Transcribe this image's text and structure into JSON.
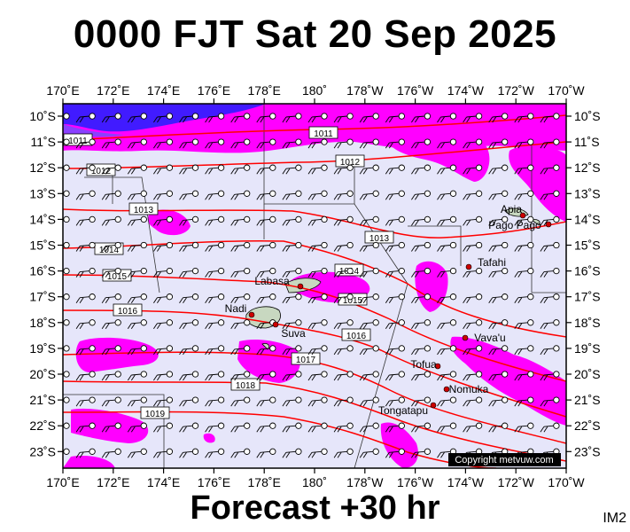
{
  "title": "0000 FJT Sat 20 Sep 2025",
  "footer": "Forecast +30 hr",
  "code": "IM2",
  "copyright": "Copyright metvuw.com",
  "lon_labels": [
    "170˚E",
    "172˚E",
    "174˚E",
    "176˚E",
    "178˚E",
    "180˚",
    "178˚W",
    "176˚W",
    "174˚W",
    "172˚W",
    "170˚W"
  ],
  "lat_labels": [
    "10˚S",
    "11˚S",
    "12˚S",
    "13˚S",
    "14˚S",
    "15˚S",
    "16˚S",
    "17˚S",
    "18˚S",
    "19˚S",
    "20˚S",
    "21˚S",
    "22˚S",
    "23˚S"
  ],
  "isobars": [
    "1011",
    "1011",
    "1012",
    "1012",
    "1013",
    "1013",
    "1014",
    "1014",
    "1015",
    "1015",
    "1016",
    "1016",
    "1017",
    "1018",
    "1019"
  ],
  "places": [
    "Apia",
    "Pago Pago",
    "Tafahi",
    "Labasa",
    "Nadi",
    "Suva",
    "Vava'u",
    "Tofua",
    "Nomuka",
    "Tongatapu"
  ],
  "colors": {
    "ocean": "#e6e6fa",
    "rain_light": "#ff00ff",
    "rain_heavy": "#2020ff",
    "isobar": "#ff0000",
    "land": "#c8d8c0",
    "town": "#cc0000"
  }
}
